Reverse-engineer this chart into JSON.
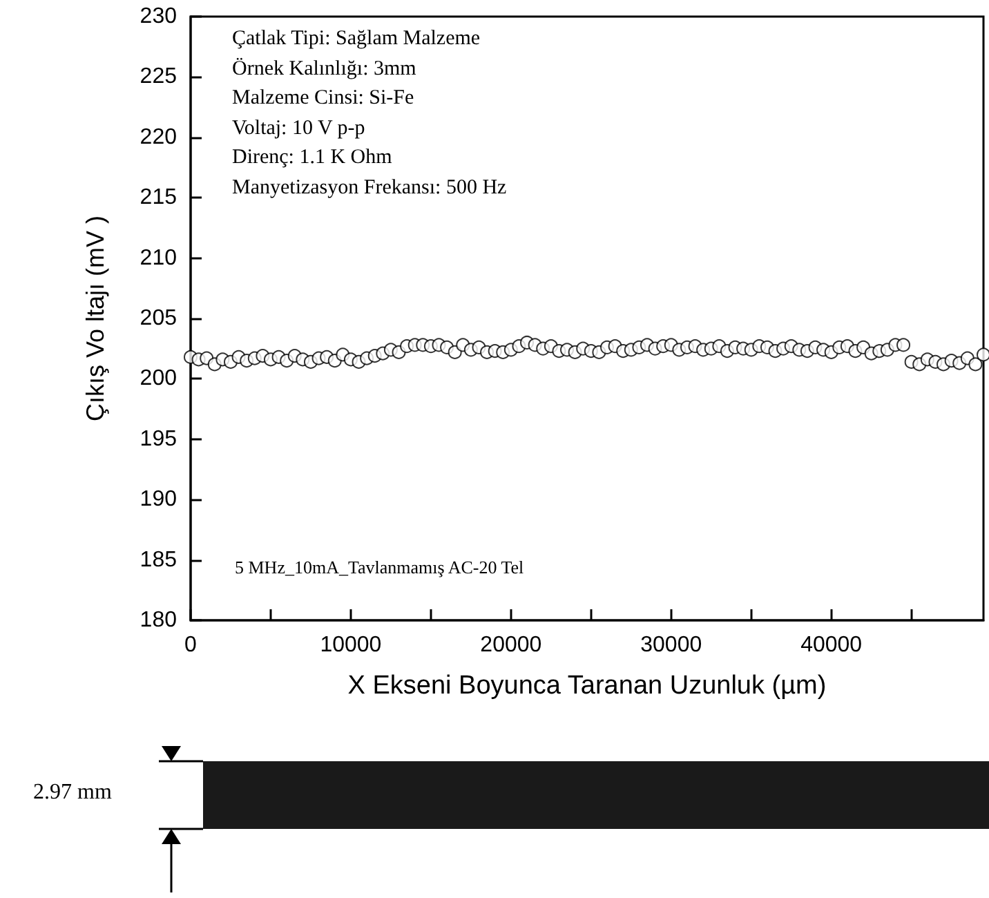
{
  "chart_data": {
    "type": "scatter",
    "xlabel": "X Ekseni Boyunca Taranan Uzunluk (µm)",
    "ylabel": "Çıkış Vo ltajı (mV )",
    "annotations": [
      "Çatlak Tipi: Sağlam Malzeme",
      "Örnek Kalınlığı: 3mm",
      "Malzeme Cinsi: Si-Fe",
      "Voltaj: 10 V p-p",
      "Direnç: 1.1 K Ohm",
      "Manyetizasyon Frekansı: 500 Hz",
      "5 MHz_10mA_Tavlanmamış AC-20 Tel",
      "2.97 mm"
    ],
    "x": [
      0,
      500,
      1000,
      1500,
      2000,
      2500,
      3000,
      3500,
      4000,
      4500,
      5000,
      5500,
      6000,
      6500,
      7000,
      7500,
      8000,
      8500,
      9000,
      9500,
      10000,
      10500,
      11000,
      11500,
      12000,
      12500,
      13000,
      13500,
      14000,
      14500,
      15000,
      15500,
      16000,
      16500,
      17000,
      17500,
      18000,
      18500,
      19000,
      19500,
      20000,
      20500,
      21000,
      21500,
      22000,
      22500,
      23000,
      23500,
      24000,
      24500,
      25000,
      25500,
      26000,
      26500,
      27000,
      27500,
      28000,
      28500,
      29000,
      29500,
      30000,
      30500,
      31000,
      31500,
      32000,
      32500,
      33000,
      33500,
      34000,
      34500,
      35000,
      35500,
      36000,
      36500,
      37000,
      37500,
      38000,
      38500,
      39000,
      39500,
      40000,
      40500,
      41000,
      41500,
      42000,
      42500,
      43000,
      43500,
      44000,
      44500,
      45000,
      45500,
      46000,
      46500,
      47000,
      47500,
      48000,
      48500,
      49000,
      49500
    ],
    "series": [
      {
        "color": "#000000",
        "values": [
          201.8,
          201.6,
          201.7,
          201.2,
          201.6,
          201.4,
          201.8,
          201.5,
          201.7,
          201.9,
          201.6,
          201.8,
          201.5,
          201.9,
          201.6,
          201.4,
          201.7,
          201.8,
          201.5,
          202.0,
          201.6,
          201.4,
          201.7,
          201.9,
          202.1,
          202.4,
          202.2,
          202.7,
          202.8,
          202.8,
          202.7,
          202.8,
          202.6,
          202.2,
          202.8,
          202.4,
          202.6,
          202.2,
          202.3,
          202.2,
          202.4,
          202.7,
          203.0,
          202.8,
          202.5,
          202.7,
          202.3,
          202.4,
          202.2,
          202.5,
          202.3,
          202.2,
          202.6,
          202.7,
          202.3,
          202.4,
          202.6,
          202.8,
          202.5,
          202.7,
          202.8,
          202.4,
          202.6,
          202.7,
          202.4,
          202.5,
          202.7,
          202.3,
          202.6,
          202.5,
          202.4,
          202.7,
          202.6,
          202.3,
          202.5,
          202.7,
          202.4,
          202.3,
          202.6,
          202.4,
          202.2,
          202.6,
          202.7,
          202.3,
          202.6,
          202.1,
          202.3,
          202.4,
          202.8,
          202.8,
          201.4,
          201.2,
          201.6,
          201.4,
          201.2,
          201.5,
          201.3,
          201.7,
          201.2,
          202.0
        ]
      }
    ],
    "xlim": [
      0,
      49500
    ],
    "xticks": [
      0,
      {
        "value": 5000,
        "label": null
      },
      10000,
      {
        "value": 15000,
        "label": null
      },
      20000,
      {
        "value": 25000,
        "label": null
      },
      30000,
      {
        "value": 35000,
        "label": null
      },
      40000,
      {
        "value": 45000,
        "label": null
      }
    ],
    "ylim": [
      180,
      230
    ],
    "yticks": [
      180,
      185,
      190,
      195,
      200,
      205,
      210,
      215,
      220,
      225,
      230
    ],
    "marker": "circle"
  }
}
